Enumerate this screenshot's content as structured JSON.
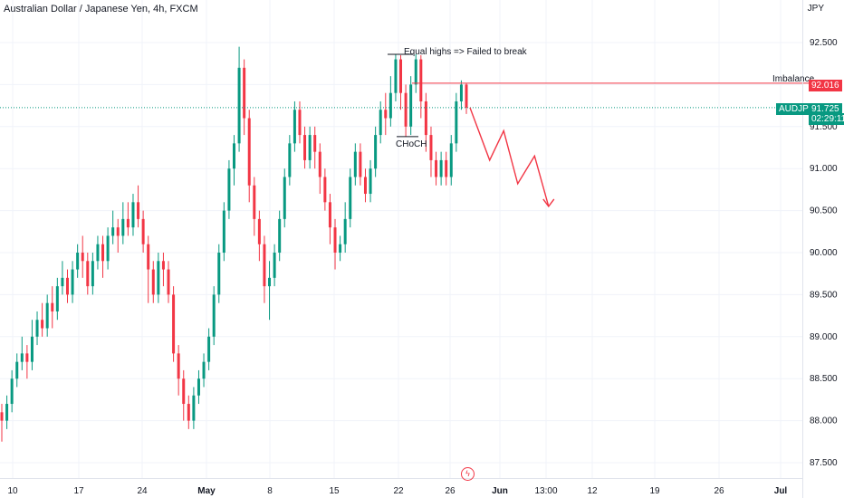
{
  "header": {
    "symbol_title": "Australian Dollar / Japanese Yen, 4h, FXCM",
    "currency": "JPY"
  },
  "annotations": {
    "equal_highs": "Equal highs => Failed to break",
    "choch": "CHoCH",
    "imbalance": "Imbalance"
  },
  "tags": {
    "symbol": "AUDJPY",
    "last_price": "91.725",
    "countdown": "02:29:11",
    "imbalance_price": "92.016"
  },
  "colors": {
    "up": "#089981",
    "down": "#f23645",
    "grid": "#f0f3fa",
    "text": "#131722",
    "bear_path": "#f23645",
    "price_line": "#089981"
  },
  "chart_data": {
    "type": "candlestick",
    "title": "Australian Dollar / Japanese Yen, 4h, FXCM",
    "ylabel": "JPY",
    "ylim": [
      87.4,
      93.0
    ],
    "y_ticks": [
      "92.500",
      "92.000",
      "91.500",
      "91.000",
      "90.500",
      "90.000",
      "89.500",
      "89.000",
      "88.500",
      "88.000",
      "87.500"
    ],
    "x_ticks": [
      "10",
      "17",
      "24",
      "May",
      "8",
      "15",
      "22",
      "26",
      "Jun",
      "13:00",
      "12",
      "19",
      "26",
      "Jul"
    ],
    "last_price": 91.725,
    "imbalance_level": 92.016,
    "equal_highs_level": 92.36,
    "choch_level": 91.38,
    "candles": [
      [
        88.1,
        88.0,
        88.2,
        87.75
      ],
      [
        88.0,
        88.2,
        88.3,
        87.9
      ],
      [
        88.2,
        88.5,
        88.6,
        88.1
      ],
      [
        88.5,
        88.7,
        88.8,
        88.4
      ],
      [
        88.7,
        88.8,
        89.0,
        88.6
      ],
      [
        88.8,
        88.7,
        88.9,
        88.5
      ],
      [
        88.7,
        89.0,
        89.2,
        88.6
      ],
      [
        89.0,
        89.2,
        89.3,
        88.9
      ],
      [
        89.2,
        89.1,
        89.4,
        89.0
      ],
      [
        89.1,
        89.4,
        89.5,
        89.0
      ],
      [
        89.4,
        89.3,
        89.6,
        89.1
      ],
      [
        89.3,
        89.6,
        89.7,
        89.2
      ],
      [
        89.6,
        89.7,
        89.9,
        89.5
      ],
      [
        89.7,
        89.5,
        89.8,
        89.4
      ],
      [
        89.5,
        89.8,
        89.9,
        89.4
      ],
      [
        89.8,
        90.0,
        90.1,
        89.7
      ],
      [
        90.0,
        89.9,
        90.2,
        89.7
      ],
      [
        89.9,
        89.6,
        90.0,
        89.5
      ],
      [
        89.6,
        89.9,
        90.0,
        89.5
      ],
      [
        89.9,
        90.1,
        90.2,
        89.8
      ],
      [
        90.1,
        89.9,
        90.2,
        89.7
      ],
      [
        89.9,
        90.2,
        90.3,
        89.8
      ],
      [
        90.2,
        90.3,
        90.5,
        90.1
      ],
      [
        90.3,
        90.2,
        90.4,
        90.0
      ],
      [
        90.2,
        90.4,
        90.6,
        90.1
      ],
      [
        90.4,
        90.3,
        90.6,
        90.2
      ],
      [
        90.3,
        90.6,
        90.7,
        90.2
      ],
      [
        90.6,
        90.4,
        90.8,
        90.3
      ],
      [
        90.4,
        90.1,
        90.5,
        90.0
      ],
      [
        90.1,
        89.8,
        90.2,
        89.4
      ],
      [
        89.8,
        89.5,
        89.9,
        89.4
      ],
      [
        89.5,
        89.9,
        90.0,
        89.4
      ],
      [
        89.9,
        89.8,
        90.0,
        89.6
      ],
      [
        89.8,
        89.5,
        89.9,
        89.4
      ],
      [
        89.5,
        88.8,
        89.6,
        88.7
      ],
      [
        88.8,
        88.5,
        88.9,
        88.3
      ],
      [
        88.5,
        88.2,
        88.6,
        88.0
      ],
      [
        88.2,
        88.0,
        88.3,
        87.9
      ],
      [
        88.0,
        88.3,
        88.4,
        87.9
      ],
      [
        88.3,
        88.5,
        88.6,
        88.2
      ],
      [
        88.5,
        88.7,
        88.8,
        88.4
      ],
      [
        88.7,
        89.0,
        89.1,
        88.6
      ],
      [
        89.0,
        89.5,
        89.6,
        88.9
      ],
      [
        89.5,
        90.0,
        90.1,
        89.4
      ],
      [
        90.0,
        90.5,
        90.6,
        89.9
      ],
      [
        90.5,
        91.0,
        91.1,
        90.4
      ],
      [
        91.0,
        91.3,
        91.4,
        90.8
      ],
      [
        91.3,
        92.2,
        92.45,
        91.2
      ],
      [
        92.2,
        91.6,
        92.3,
        91.4
      ],
      [
        91.6,
        90.8,
        91.7,
        90.6
      ],
      [
        90.8,
        90.4,
        90.9,
        90.2
      ],
      [
        90.4,
        90.1,
        90.5,
        89.9
      ],
      [
        90.1,
        89.6,
        90.2,
        89.4
      ],
      [
        89.6,
        89.7,
        89.9,
        89.2
      ],
      [
        89.7,
        90.0,
        90.1,
        89.6
      ],
      [
        90.0,
        90.4,
        90.5,
        89.9
      ],
      [
        90.4,
        90.9,
        91.0,
        90.3
      ],
      [
        90.9,
        91.3,
        91.4,
        90.8
      ],
      [
        91.3,
        91.7,
        91.8,
        91.2
      ],
      [
        91.7,
        91.4,
        91.8,
        91.3
      ],
      [
        91.4,
        91.1,
        91.5,
        91.0
      ],
      [
        91.1,
        91.4,
        91.5,
        91.0
      ],
      [
        91.4,
        91.2,
        91.5,
        91.0
      ],
      [
        91.2,
        90.9,
        91.3,
        90.7
      ],
      [
        90.9,
        90.6,
        91.0,
        90.5
      ],
      [
        90.6,
        90.3,
        90.7,
        90.1
      ],
      [
        90.3,
        90.0,
        90.4,
        89.8
      ],
      [
        90.0,
        90.1,
        90.2,
        89.9
      ],
      [
        90.1,
        90.4,
        90.6,
        90.0
      ],
      [
        90.4,
        90.9,
        91.0,
        90.3
      ],
      [
        90.9,
        91.2,
        91.3,
        90.8
      ],
      [
        91.2,
        90.9,
        91.3,
        90.8
      ],
      [
        90.9,
        90.7,
        91.0,
        90.6
      ],
      [
        90.7,
        91.0,
        91.1,
        90.6
      ],
      [
        91.0,
        91.4,
        91.5,
        90.9
      ],
      [
        91.4,
        91.7,
        91.8,
        91.3
      ],
      [
        91.7,
        91.6,
        91.9,
        91.4
      ],
      [
        91.6,
        91.9,
        92.1,
        91.5
      ],
      [
        91.9,
        92.3,
        92.36,
        91.8
      ],
      [
        92.3,
        91.9,
        92.35,
        91.7
      ],
      [
        91.9,
        91.5,
        92.0,
        91.38
      ],
      [
        91.5,
        92.0,
        92.1,
        91.4
      ],
      [
        92.0,
        92.3,
        92.36,
        91.9
      ],
      [
        92.3,
        91.8,
        92.35,
        91.6
      ],
      [
        91.8,
        91.4,
        91.9,
        91.2
      ],
      [
        91.4,
        91.1,
        91.5,
        90.9
      ],
      [
        91.1,
        90.9,
        91.2,
        90.8
      ],
      [
        90.9,
        91.1,
        91.2,
        90.8
      ],
      [
        91.1,
        90.9,
        91.2,
        90.8
      ],
      [
        90.9,
        91.3,
        91.4,
        90.8
      ],
      [
        91.3,
        91.8,
        91.9,
        91.2
      ],
      [
        91.8,
        92.0,
        92.05,
        91.7
      ],
      [
        92.0,
        91.725,
        92.02,
        91.65
      ]
    ],
    "projection": [
      [
        91.725,
        0
      ],
      [
        91.1,
        7
      ],
      [
        91.45,
        12
      ],
      [
        90.82,
        17
      ],
      [
        91.15,
        23
      ],
      [
        90.55,
        28
      ]
    ]
  }
}
